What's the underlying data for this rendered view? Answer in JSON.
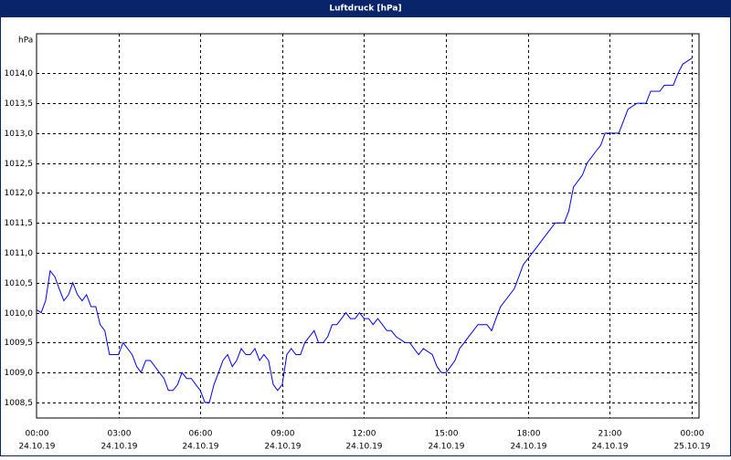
{
  "chart_data": {
    "type": "line",
    "title": "Luftdruck [hPa]",
    "y_label": "hPa",
    "color": "#0000ff",
    "grid": true,
    "xlim": [
      0,
      24.27
    ],
    "ylim": [
      1008.24,
      1014.66
    ],
    "yticks": [
      {
        "value": 1008.5,
        "label": "1008,5"
      },
      {
        "value": 1009,
        "label": "1009,0"
      },
      {
        "value": 1009.5,
        "label": "1009,5"
      },
      {
        "value": 1010,
        "label": "1010,0"
      },
      {
        "value": 1010.5,
        "label": "1010,5"
      },
      {
        "value": 1011,
        "label": "1011,0"
      },
      {
        "value": 1011.5,
        "label": "1011,5"
      },
      {
        "value": 1012,
        "label": "1012,0"
      },
      {
        "value": 1012.5,
        "label": "1012,5"
      },
      {
        "value": 1013,
        "label": "1013,0"
      },
      {
        "value": 1013.5,
        "label": "1013,5"
      },
      {
        "value": 1014,
        "label": "1014,0"
      }
    ],
    "xticks": [
      {
        "value": 0,
        "label": "00:00"
      },
      {
        "value": 3,
        "label": "03:00"
      },
      {
        "value": 6,
        "label": "06:00"
      },
      {
        "value": 9,
        "label": "09:00"
      },
      {
        "value": 12,
        "label": "12:00"
      },
      {
        "value": 15,
        "label": "15:00"
      },
      {
        "value": 18,
        "label": "18:00"
      },
      {
        "value": 21,
        "label": "21:00"
      },
      {
        "value": 24,
        "label": "00:00"
      }
    ],
    "xtick_dates": [
      "24.10.19",
      "24.10.19",
      "24.10.19",
      "24.10.19",
      "24.10.19",
      "24.10.19",
      "24.10.19",
      "24.10.19",
      "25.10.19"
    ],
    "x": [
      0,
      0.17,
      0.33,
      0.5,
      0.67,
      0.83,
      1,
      1.17,
      1.33,
      1.5,
      1.67,
      1.83,
      2,
      2.17,
      2.33,
      2.5,
      2.67,
      3,
      3.17,
      3.5,
      3.67,
      3.83,
      4,
      4.17,
      4.5,
      4.67,
      4.83,
      5,
      5.17,
      5.33,
      5.5,
      5.67,
      5.83,
      6,
      6.17,
      6.33,
      6.5,
      6.67,
      6.83,
      7,
      7.17,
      7.33,
      7.5,
      7.67,
      7.83,
      8,
      8.17,
      8.33,
      8.5,
      8.67,
      8.83,
      9,
      9.17,
      9.33,
      9.5,
      9.67,
      9.83,
      10,
      10.17,
      10.33,
      10.5,
      10.67,
      10.83,
      11,
      11.17,
      11.33,
      11.5,
      11.67,
      11.83,
      12,
      12.17,
      12.33,
      12.5,
      12.67,
      12.83,
      13,
      13.17,
      13.5,
      13.67,
      13.83,
      14,
      14.17,
      14.5,
      14.67,
      14.83,
      15,
      15.17,
      15.33,
      15.5,
      15.67,
      15.83,
      16,
      16.17,
      16.5,
      16.67,
      16.83,
      17,
      17.5,
      17.67,
      17.83,
      18,
      18.5,
      19,
      19.33,
      19.5,
      19.67,
      20,
      20.17,
      20.5,
      20.67,
      20.83,
      21.33,
      21.67,
      22,
      22.33,
      22.5,
      22.83,
      23,
      23.33,
      23.5,
      23.67,
      23.83,
      24
    ],
    "values": [
      1010.05,
      1010,
      1010.2,
      1010.7,
      1010.6,
      1010.4,
      1010.2,
      1010.3,
      1010.5,
      1010.3,
      1010.2,
      1010.3,
      1010.1,
      1010.1,
      1009.8,
      1009.7,
      1009.3,
      1009.3,
      1009.5,
      1009.3,
      1009.1,
      1009,
      1009.2,
      1009.2,
      1009,
      1008.9,
      1008.7,
      1008.7,
      1008.8,
      1009,
      1008.9,
      1008.9,
      1008.8,
      1008.7,
      1008.5,
      1008.5,
      1008.8,
      1009,
      1009.2,
      1009.3,
      1009.1,
      1009.2,
      1009.4,
      1009.3,
      1009.3,
      1009.4,
      1009.2,
      1009.3,
      1009.2,
      1008.8,
      1008.7,
      1008.8,
      1009.3,
      1009.4,
      1009.3,
      1009.3,
      1009.5,
      1009.6,
      1009.7,
      1009.5,
      1009.5,
      1009.6,
      1009.8,
      1009.8,
      1009.9,
      1010,
      1009.9,
      1009.9,
      1010,
      1009.9,
      1009.9,
      1009.8,
      1009.9,
      1009.8,
      1009.7,
      1009.7,
      1009.6,
      1009.5,
      1009.5,
      1009.4,
      1009.3,
      1009.4,
      1009.3,
      1009.1,
      1009,
      1009,
      1009.1,
      1009.2,
      1009.4,
      1009.5,
      1009.6,
      1009.7,
      1009.8,
      1009.8,
      1009.7,
      1009.9,
      1010.1,
      1010.4,
      1010.6,
      1010.8,
      1010.9,
      1011.2,
      1011.5,
      1011.5,
      1011.7,
      1012.1,
      1012.3,
      1012.5,
      1012.7,
      1012.8,
      1013,
      1013,
      1013.4,
      1013.5,
      1013.5,
      1013.7,
      1013.7,
      1013.8,
      1013.8,
      1014,
      1014.15,
      1014.2,
      1014.25
    ]
  }
}
